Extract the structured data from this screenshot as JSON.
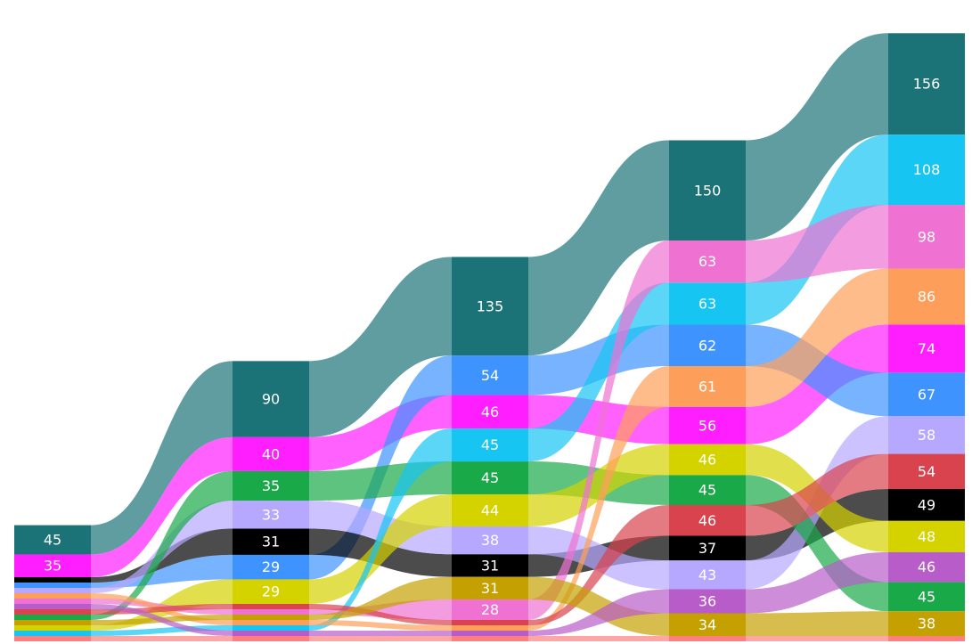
{
  "chart_data": {
    "type": "bump-area",
    "columns": 6,
    "series": [
      {
        "name": "",
        "color": "#1b7377",
        "ranks": [
          1,
          1,
          1,
          1,
          1
        ],
        "values": [
          45,
          90,
          135,
          150,
          156
        ]
      },
      {
        "name": "",
        "color": "#ff1eff",
        "ranks": [
          2,
          2,
          3,
          5,
          5
        ],
        "values": [
          35,
          40,
          46,
          56,
          74
        ]
      },
      {
        "name": "",
        "color": "#3f93ff",
        "ranks": [
          4,
          6,
          2,
          4,
          6
        ],
        "values": [
          null,
          29,
          54,
          62,
          67
        ]
      },
      {
        "name": "",
        "color": "#000000",
        "ranks": [
          3,
          5,
          8,
          8,
          9
        ],
        "values": [
          null,
          31,
          31,
          37,
          49
        ]
      },
      {
        "name": "",
        "color": "#b6a8ff",
        "ranks": [
          5,
          4,
          7,
          9,
          7
        ],
        "values": [
          null,
          33,
          38,
          43,
          58
        ]
      },
      {
        "name": "",
        "color": "#1aa948",
        "ranks": [
          10,
          3,
          5,
          7,
          11
        ],
        "values": [
          null,
          35,
          45,
          45,
          45
        ]
      },
      {
        "name": "",
        "color": "#d4d300",
        "ranks": [
          12,
          7,
          6,
          6,
          9
        ],
        "values": [
          null,
          29,
          44,
          46,
          48
        ]
      },
      {
        "name": "",
        "color": "#17c5f3",
        "ranks": [
          13,
          12,
          4,
          3,
          2
        ],
        "values": [
          null,
          null,
          45,
          63,
          108
        ]
      },
      {
        "name": "",
        "color": "#ef72d3",
        "ranks": [
          7,
          9,
          10,
          2,
          3
        ],
        "values": [
          null,
          null,
          28,
          63,
          98
        ]
      },
      {
        "name": "",
        "color": "#fd9f5a",
        "ranks": [
          6,
          11,
          12,
          4,
          4
        ],
        "values": [
          null,
          null,
          null,
          61,
          86
        ]
      },
      {
        "name": "",
        "color": "#d8434e",
        "ranks": [
          9,
          8,
          11,
          7,
          8
        ],
        "values": [
          null,
          null,
          null,
          46,
          54
        ]
      },
      {
        "name": "",
        "color": "#c4a101",
        "ranks": [
          11,
          10,
          9,
          12,
          12
        ],
        "values": [
          null,
          null,
          31,
          34,
          38
        ]
      },
      {
        "name": "",
        "color": "#b85cc9",
        "ranks": [
          8,
          13,
          13,
          10,
          10
        ],
        "values": [
          null,
          null,
          null,
          36,
          46
        ]
      },
      {
        "name": "",
        "color": "#fe7f7f",
        "ranks": [
          14,
          14,
          14,
          13,
          13
        ],
        "values": [
          null,
          null,
          null,
          null,
          null
        ]
      }
    ]
  }
}
